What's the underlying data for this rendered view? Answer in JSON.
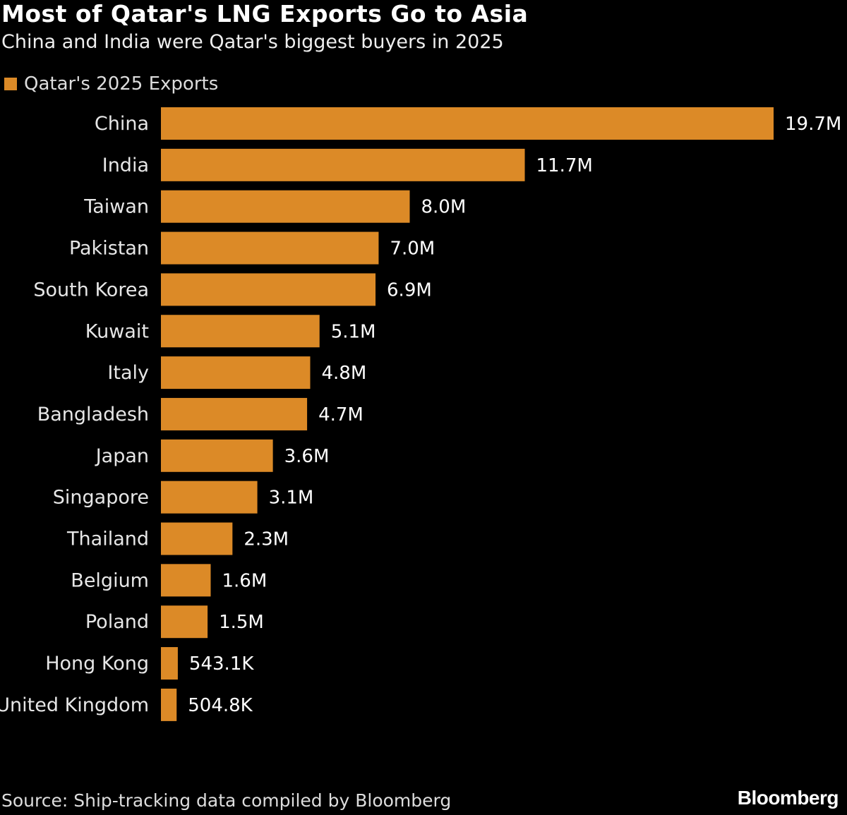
{
  "chart_data": {
    "type": "bar",
    "orientation": "horizontal",
    "title": "Most of Qatar's LNG Exports Go to Asia",
    "subtitle": "China and India were Qatar's biggest buyers in 2025",
    "legend": {
      "entries": [
        "Qatar's 2025 Exports"
      ],
      "placement": "top-left"
    },
    "categories": [
      "China",
      "India",
      "Taiwan",
      "Pakistan",
      "South Korea",
      "Kuwait",
      "Italy",
      "Bangladesh",
      "Japan",
      "Singapore",
      "Thailand",
      "Belgium",
      "Poland",
      "Hong Kong",
      "United Kingdom"
    ],
    "series": [
      {
        "name": "Qatar's 2025 Exports",
        "color": "#dc8a27",
        "values": [
          19700000,
          11700000,
          8000000,
          7000000,
          6900000,
          5100000,
          4800000,
          4700000,
          3600000,
          3100000,
          2300000,
          1600000,
          1500000,
          543100,
          504800
        ],
        "labels": [
          "19.7M",
          "11.7M",
          "8.0M",
          "7.0M",
          "6.9M",
          "5.1M",
          "4.8M",
          "4.7M",
          "3.6M",
          "3.1M",
          "2.3M",
          "1.6M",
          "1.5M",
          "543.1K",
          "504.8K"
        ]
      }
    ],
    "xlim": [
      0,
      19700000
    ],
    "grid": false,
    "source": "Source: Ship-tracking data compiled by Bloomberg",
    "logo": "Bloomberg"
  }
}
